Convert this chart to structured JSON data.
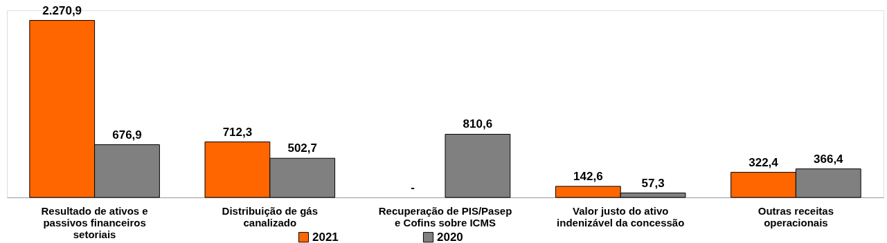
{
  "chart_data": {
    "type": "bar",
    "categories": [
      "Resultado de ativos e\npassivos financeiros\nsetoriais",
      "Distribuição de gás\ncanalizado",
      "Recuperação de PIS/Pasep\ne Cofins sobre ICMS",
      "Valor justo do ativo\nindenizável da concessão",
      "Outras receitas\noperacionais"
    ],
    "series": [
      {
        "name": "2021",
        "color": "#ff6600",
        "values": [
          2270.9,
          712.3,
          null,
          142.6,
          322.4
        ],
        "value_labels": [
          "2.270,9",
          "712,3",
          "-",
          "142,6",
          "322,4"
        ]
      },
      {
        "name": "2020",
        "color": "#808080",
        "values": [
          676.9,
          502.7,
          810.6,
          57.3,
          366.4
        ],
        "value_labels": [
          "676,9",
          "502,7",
          "810,6",
          "57,3",
          "366,4"
        ]
      }
    ],
    "legend": "bottom",
    "grid": false
  }
}
